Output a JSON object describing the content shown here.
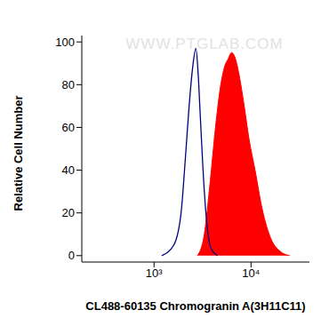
{
  "chart_data": {
    "type": "area",
    "x_label": "CL488-60135 Chromogranin A(3H11C11)",
    "y_label": "Relative Cell Number",
    "annotations": [
      "WWW.PTGLAB.COM"
    ],
    "log": "x",
    "grid": false,
    "xlim": [
      180,
      40000
    ],
    "xticks": [
      {
        "value": 1000,
        "label": "10³"
      },
      {
        "value": 10000,
        "label": "10⁴"
      }
    ],
    "ylim": [
      -3,
      103
    ],
    "yticks": [
      0,
      20,
      40,
      60,
      80,
      100
    ],
    "series": [
      {
        "type": "line",
        "color": "#000080",
        "x": [
          1200,
          1600,
          1900,
          2100,
          2300,
          2500,
          2700,
          2850,
          3000,
          3200,
          3500,
          3900,
          4500
        ],
        "values": [
          0,
          5,
          20,
          45,
          70,
          88,
          97,
          85,
          65,
          40,
          15,
          3,
          0
        ]
      },
      {
        "type": "area",
        "color": "#ff0000",
        "x": [
          2800,
          3300,
          3800,
          4300,
          4800,
          5300,
          5800,
          6300,
          6800,
          7500,
          8500,
          9500,
          11000,
          13000,
          16000,
          20000,
          25000
        ],
        "values": [
          0,
          10,
          35,
          60,
          78,
          88,
          92,
          95,
          93,
          85,
          70,
          55,
          40,
          22,
          8,
          2,
          0
        ]
      }
    ]
  }
}
